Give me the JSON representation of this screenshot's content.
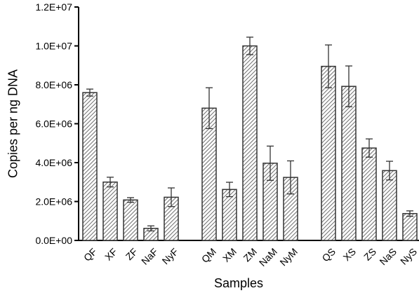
{
  "chart_data": {
    "type": "bar",
    "title": "",
    "xlabel": "Samples",
    "ylabel": "Copies per ng DNA",
    "ylim": [
      0,
      12000000
    ],
    "yticks": [
      "0.0E+00",
      "2.0E+06",
      "4.0E+06",
      "6.0E+06",
      "8.0E+06",
      "1.0E+07",
      "1.2E+07"
    ],
    "yticks_values": [
      0,
      2000000,
      4000000,
      6000000,
      8000000,
      10000000,
      12000000
    ],
    "groups": [
      {
        "categories": [
          "QF",
          "XF",
          "ZF",
          "NaF",
          "NyF"
        ],
        "values": [
          7600000,
          3000000,
          2080000,
          620000,
          2220000
        ],
        "errors": [
          180000,
          250000,
          120000,
          130000,
          480000
        ]
      },
      {
        "categories": [
          "QM",
          "XM",
          "ZM",
          "NaM",
          "NyM"
        ],
        "values": [
          6800000,
          2620000,
          10000000,
          3970000,
          3240000
        ],
        "errors": [
          1050000,
          370000,
          450000,
          880000,
          850000
        ]
      },
      {
        "categories": [
          "QS",
          "XS",
          "ZS",
          "NaS",
          "NyS"
        ],
        "values": [
          8950000,
          7920000,
          4750000,
          3590000,
          1380000
        ],
        "errors": [
          1100000,
          1050000,
          470000,
          480000,
          140000
        ]
      }
    ],
    "bar_fill": "diagonal hatch",
    "bar_color": "#6e6e6e",
    "grid": false,
    "legend": false
  }
}
